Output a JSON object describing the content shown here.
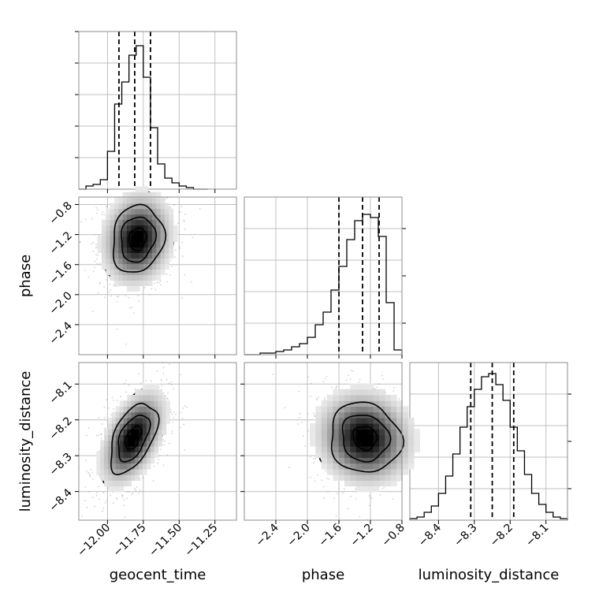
{
  "colors": {
    "hist": "#000000",
    "grid": "#c0c0c0",
    "points": "#9a9a9a",
    "frame": "#8c8c8c"
  },
  "parameters": [
    "geocent_time",
    "phase",
    "luminosity_distance"
  ],
  "chart_data": [
    {
      "type": "histogram",
      "panel": "geocent_time",
      "xlim": [
        -12.2,
        -11.1
      ],
      "ylim": [
        0,
        1
      ],
      "bins": {
        "edges": [
          -12.2,
          -12.15,
          -12.1,
          -12.05,
          -12.0,
          -11.95,
          -11.9,
          -11.85,
          -11.8,
          -11.75,
          -11.7,
          -11.65,
          -11.6,
          -11.55,
          -11.5,
          -11.45,
          -11.4,
          -11.35,
          -11.3
        ],
        "heights": [
          0.0,
          0.02,
          0.03,
          0.06,
          0.24,
          0.54,
          0.68,
          0.85,
          0.91,
          0.71,
          0.39,
          0.16,
          0.07,
          0.04,
          0.02,
          0.01,
          0.0,
          0.0
        ]
      },
      "quantiles": [
        -11.92,
        -11.81,
        -11.7
      ],
      "grid": true
    },
    {
      "type": "histogram",
      "panel": "phase",
      "xlim": [
        -2.8,
        -0.8
      ],
      "ylim": [
        0,
        1
      ],
      "bins": {
        "edges": [
          -2.8,
          -2.7,
          -2.6,
          -2.5,
          -2.4,
          -2.3,
          -2.2,
          -2.1,
          -2.0,
          -1.9,
          -1.8,
          -1.7,
          -1.6,
          -1.5,
          -1.4,
          -1.3,
          -1.2,
          -1.1,
          -1.0,
          -0.9,
          -0.8
        ],
        "heights": [
          0.0,
          0.0,
          0.01,
          0.01,
          0.02,
          0.03,
          0.05,
          0.07,
          0.11,
          0.19,
          0.27,
          0.41,
          0.56,
          0.73,
          0.85,
          0.89,
          0.87,
          0.75,
          0.33,
          0.03
        ]
      },
      "quantiles": [
        -1.6,
        -1.3,
        -1.09
      ],
      "grid": true
    },
    {
      "type": "histogram",
      "panel": "luminosity_distance",
      "xlim": [
        -8.48,
        -8.04
      ],
      "ylim": [
        0,
        1
      ],
      "bins": {
        "edges": [
          -8.48,
          -8.46,
          -8.44,
          -8.42,
          -8.4,
          -8.38,
          -8.36,
          -8.34,
          -8.32,
          -8.3,
          -8.28,
          -8.26,
          -8.24,
          -8.22,
          -8.2,
          -8.18,
          -8.16,
          -8.14,
          -8.12,
          -8.1,
          -8.08,
          -8.06,
          -8.04
        ],
        "heights": [
          0.01,
          0.02,
          0.05,
          0.09,
          0.17,
          0.28,
          0.42,
          0.59,
          0.72,
          0.83,
          0.91,
          0.93,
          0.86,
          0.76,
          0.59,
          0.44,
          0.29,
          0.17,
          0.1,
          0.05,
          0.02,
          0.01
        ]
      },
      "quantiles": [
        -8.31,
        -8.25,
        -8.19
      ],
      "grid": true
    },
    {
      "type": "contour-scatter",
      "panel": "phase-vs-geocent_time",
      "x": "geocent_time",
      "y": "phase",
      "xlim": [
        -12.2,
        -11.1
      ],
      "ylim": [
        -2.8,
        -0.7
      ],
      "center": [
        -11.79,
        -1.26
      ],
      "spread": [
        0.12,
        0.3
      ],
      "correlation": 0.12,
      "grid": true
    },
    {
      "type": "contour-scatter",
      "panel": "luminosity_distance-vs-geocent_time",
      "x": "geocent_time",
      "y": "luminosity_distance",
      "xlim": [
        -12.2,
        -11.1
      ],
      "ylim": [
        -8.48,
        -8.04
      ],
      "center": [
        -11.82,
        -8.25
      ],
      "spread": [
        0.11,
        0.065
      ],
      "correlation": 0.5,
      "grid": true
    },
    {
      "type": "contour-scatter",
      "panel": "luminosity_distance-vs-phase",
      "x": "phase",
      "y": "luminosity_distance",
      "xlim": [
        -2.8,
        -0.8
      ],
      "ylim": [
        -8.48,
        -8.04
      ],
      "center": [
        -1.27,
        -8.25
      ],
      "spread": [
        0.3,
        0.065
      ],
      "correlation": -0.08,
      "grid": true
    }
  ],
  "axes": {
    "geocent_time": {
      "label": "geocent_time",
      "ticks": [
        {
          "value": -12.0,
          "text": "−12.00"
        },
        {
          "value": -11.75,
          "text": "−11.75"
        },
        {
          "value": -11.5,
          "text": "−11.50"
        },
        {
          "value": -11.25,
          "text": "−11.25"
        }
      ]
    },
    "phase": {
      "label": "phase",
      "ticks": [
        {
          "value": -2.4,
          "text": "−2.4"
        },
        {
          "value": -2.0,
          "text": "−2.0"
        },
        {
          "value": -1.6,
          "text": "−1.6"
        },
        {
          "value": -1.2,
          "text": "−1.2"
        },
        {
          "value": -0.8,
          "text": "−0.8"
        }
      ]
    },
    "luminosity_distance": {
      "label": "luminosity_distance",
      "ticks": [
        {
          "value": -8.4,
          "text": "−8.4"
        },
        {
          "value": -8.3,
          "text": "−8.3"
        },
        {
          "value": -8.2,
          "text": "−8.2"
        },
        {
          "value": -8.1,
          "text": "−8.1"
        }
      ]
    }
  }
}
